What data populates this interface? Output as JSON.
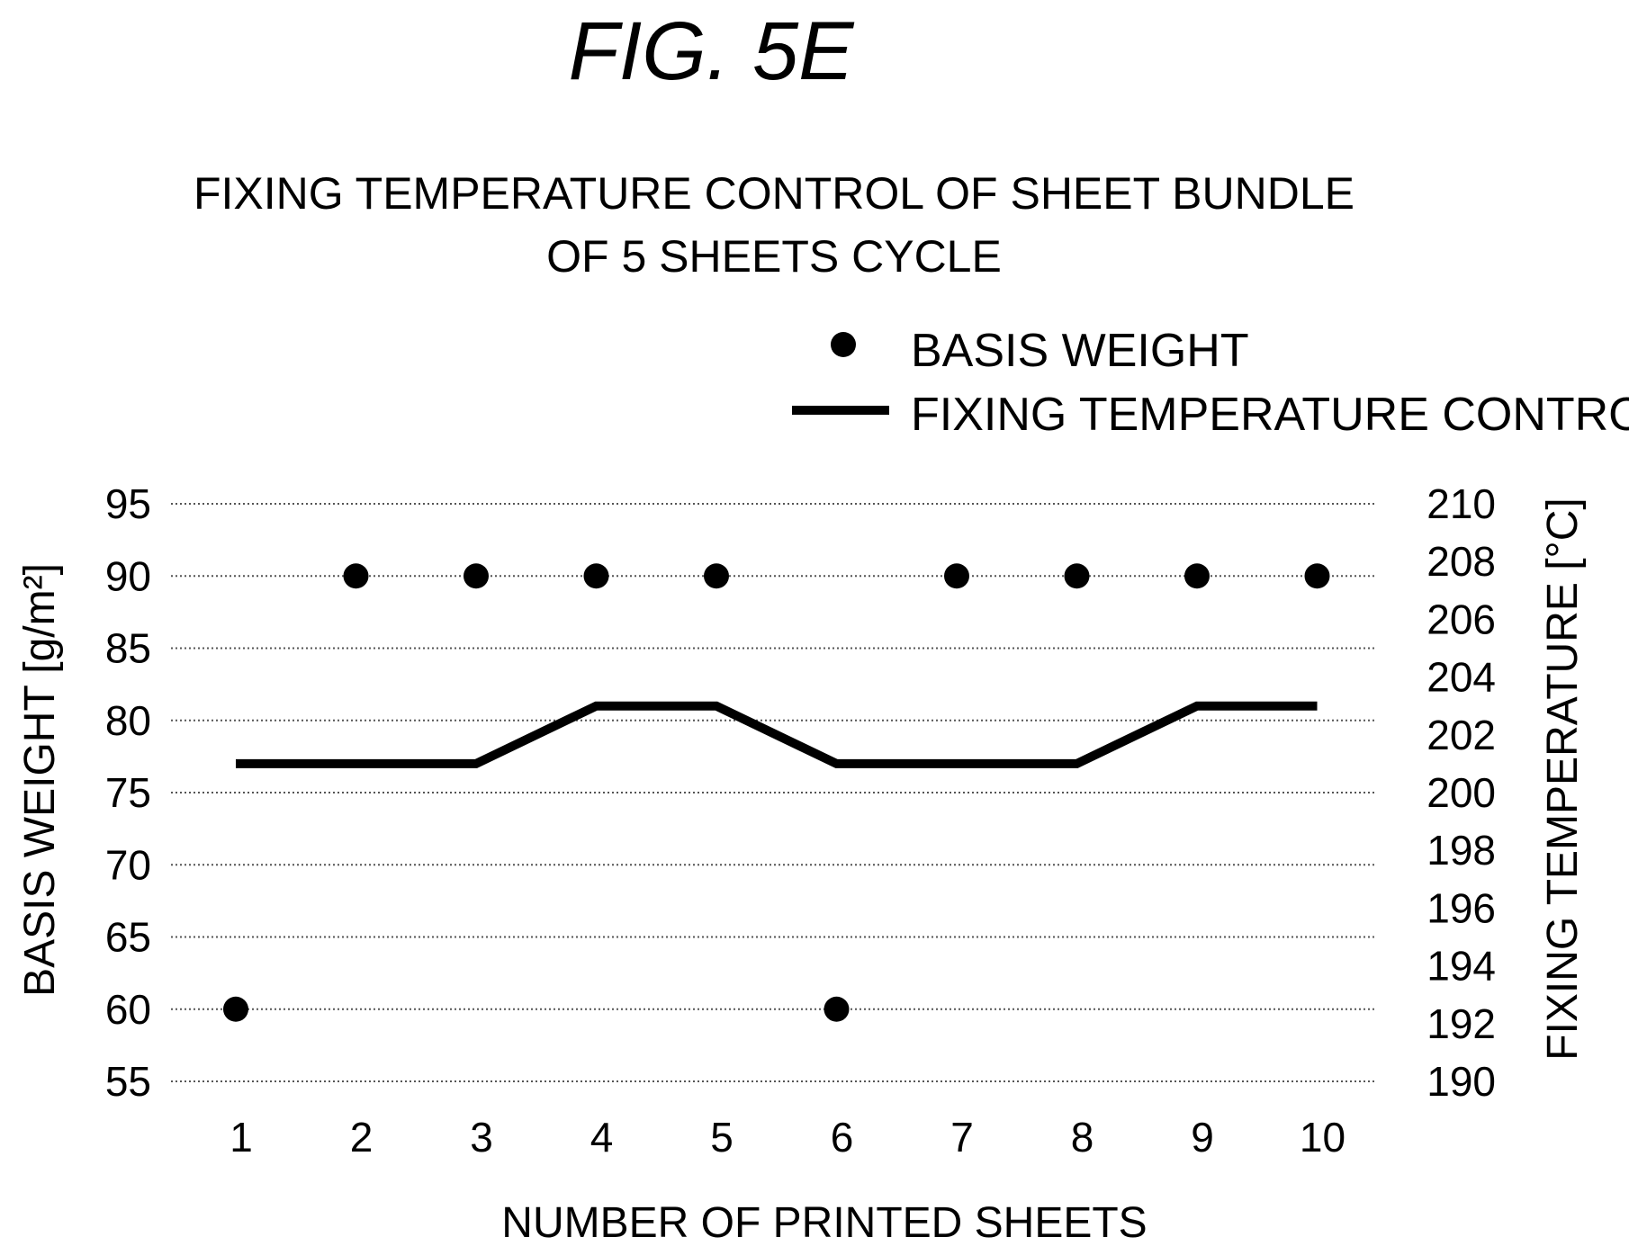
{
  "figure_label": "FIG. 5E",
  "chart_data": {
    "type": "line",
    "title": "FIXING TEMPERATURE CONTROL OF SHEET BUNDLE OF 5 SHEETS CYCLE",
    "title_lines": [
      "FIXING TEMPERATURE CONTROL OF SHEET BUNDLE",
      "OF 5 SHEETS CYCLE"
    ],
    "xlabel": "NUMBER OF PRINTED SHEETS",
    "ylabel_left": "BASIS WEIGHT [g/m²]",
    "ylabel_right": "FIXING TEMPERATURE [°C]",
    "x": [
      1,
      2,
      3,
      4,
      5,
      6,
      7,
      8,
      9,
      10
    ],
    "x_tick_labels": [
      "1",
      "2",
      "3",
      "4",
      "5",
      "6",
      "7",
      "8",
      "9",
      "10"
    ],
    "ylim_left": [
      55,
      95
    ],
    "yticks_left": [
      "95",
      "90",
      "85",
      "80",
      "75",
      "70",
      "65",
      "60",
      "55"
    ],
    "ylim_right": [
      190,
      210
    ],
    "yticks_right": [
      "210",
      "208",
      "206",
      "204",
      "202",
      "200",
      "198",
      "196",
      "194",
      "192",
      "190"
    ],
    "grid": "horizontal dotted",
    "legend_position": "top-right",
    "series": [
      {
        "name": "BASIS WEIGHT",
        "kind": "scatter",
        "axis": "left",
        "color": "#000000",
        "values": [
          60,
          90,
          90,
          90,
          90,
          60,
          90,
          90,
          90,
          90
        ]
      },
      {
        "name": "FIXING TEMPERATURE CONTROL",
        "kind": "line",
        "axis": "right",
        "color": "#000000",
        "values": [
          201,
          201,
          201,
          203,
          203,
          201,
          201,
          201,
          203,
          203
        ]
      }
    ]
  }
}
